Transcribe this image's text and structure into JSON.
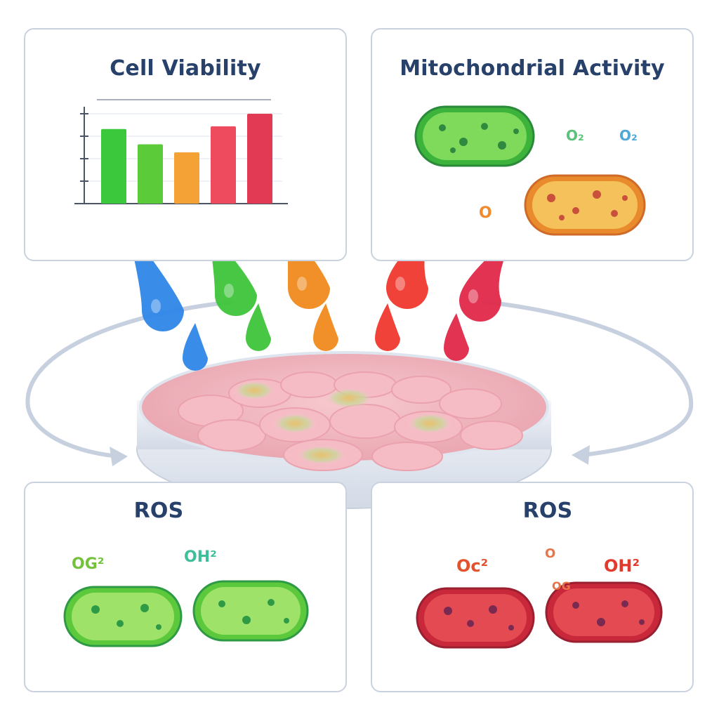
{
  "panels": {
    "cell_viability": {
      "title": "Cell Viability"
    },
    "mitochondrial_activity": {
      "title": "Mitochondrial Activity",
      "labels": [
        "O₂",
        "O₂",
        "O"
      ]
    },
    "ros_left": {
      "title": "ROS",
      "labels": [
        "OG²",
        "OH²"
      ]
    },
    "ros_right": {
      "title": "ROS",
      "labels": [
        "Oc²",
        "OH²",
        "OG",
        "O"
      ]
    }
  },
  "chart_data": {
    "type": "bar",
    "title": "Cell Viability",
    "categories": [
      "",
      "",
      "",
      "",
      ""
    ],
    "values": [
      0.83,
      0.66,
      0.57,
      0.86,
      1.0
    ],
    "colors": [
      "#3cc83c",
      "#5ccb3a",
      "#f4a136",
      "#ee4b5e",
      "#e23a55"
    ],
    "ylim": [
      0,
      1.0
    ],
    "grid": true
  },
  "droplet_colors": [
    "#2f86e8",
    "#3dc43a",
    "#f08a1c",
    "#f0382e",
    "#e0284a"
  ]
}
